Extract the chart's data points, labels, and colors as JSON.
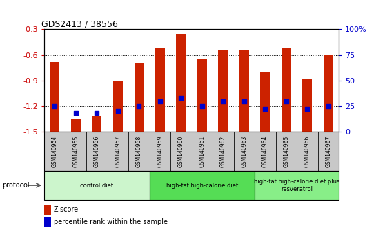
{
  "title": "GDS2413 / 38556",
  "samples": [
    "GSM140954",
    "GSM140955",
    "GSM140956",
    "GSM140957",
    "GSM140958",
    "GSM140959",
    "GSM140960",
    "GSM140961",
    "GSM140962",
    "GSM140963",
    "GSM140964",
    "GSM140965",
    "GSM140966",
    "GSM140967"
  ],
  "zscore": [
    -0.68,
    -1.35,
    -1.32,
    -0.9,
    -0.7,
    -0.52,
    -0.35,
    -0.65,
    -0.55,
    -0.55,
    -0.8,
    -0.52,
    -0.88,
    -0.6
  ],
  "percentile": [
    25,
    18,
    18,
    20,
    25,
    30,
    33,
    25,
    30,
    30,
    22,
    30,
    22,
    25
  ],
  "ylim_left": [
    -1.5,
    -0.3
  ],
  "yticks_left": [
    -1.5,
    -1.2,
    -0.9,
    -0.6,
    -0.3
  ],
  "yticks_right": [
    0,
    25,
    50,
    75,
    100
  ],
  "groups": [
    {
      "label": "control diet",
      "start": 0,
      "end": 4,
      "color": "#ccf5cc"
    },
    {
      "label": "high-fat high-calorie diet",
      "start": 5,
      "end": 9,
      "color": "#55dd55"
    },
    {
      "label": "high-fat high-calorie diet plus\nresveratrol",
      "start": 10,
      "end": 13,
      "color": "#88ee88"
    }
  ],
  "bar_color": "#cc2200",
  "dot_color": "#0000cc",
  "bar_width": 0.45,
  "bg_color": "#ffffff",
  "tick_label_color_left": "#cc0000",
  "tick_label_color_right": "#0000cc",
  "protocol_label": "protocol",
  "legend_zscore": "Z-score",
  "legend_percentile": "percentile rank within the sample",
  "label_bg": "#c8c8c8"
}
